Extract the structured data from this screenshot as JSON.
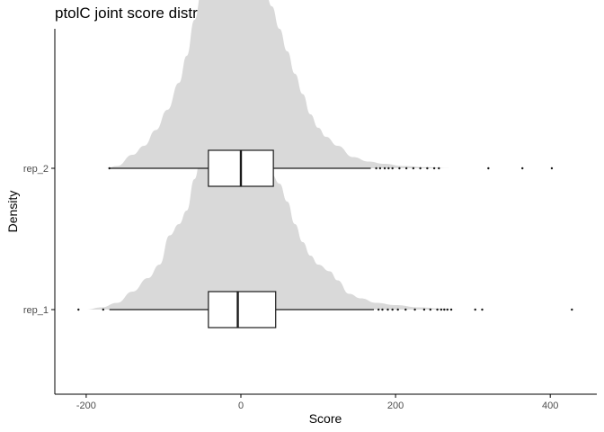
{
  "chart_data": {
    "type": "ridgeline",
    "title": "ptolC joint score distribution",
    "xlabel": "Score",
    "ylabel": "Density",
    "xlim": [
      -240,
      455
    ],
    "x_ticks": [
      -200,
      0,
      200,
      400
    ],
    "x_tick_labels": [
      "-200",
      "0",
      "200",
      "400"
    ],
    "categories": [
      "rep_1",
      "rep_2"
    ],
    "grid": false,
    "legend": "none",
    "colors": {
      "density_fill": "#d9d9d9",
      "box_fill": "#ffffff",
      "line": "#1a1a1a",
      "outlier": "#1a1a1a"
    },
    "series": [
      {
        "name": "rep_1",
        "box": {
          "whisker_low": -170,
          "q1": -42,
          "median": -4,
          "q3": 45,
          "whisker_high": 172
        },
        "density": [
          [
            -200,
            0.0
          ],
          [
            -180,
            0.01
          ],
          [
            -160,
            0.03
          ],
          [
            -140,
            0.08
          ],
          [
            -120,
            0.14
          ],
          [
            -105,
            0.2
          ],
          [
            -92,
            0.33
          ],
          [
            -80,
            0.38
          ],
          [
            -70,
            0.44
          ],
          [
            -60,
            0.58
          ],
          [
            -50,
            0.72
          ],
          [
            -40,
            0.82
          ],
          [
            -30,
            0.88
          ],
          [
            -20,
            0.92
          ],
          [
            -10,
            0.88
          ],
          [
            0,
            0.78
          ],
          [
            10,
            0.7
          ],
          [
            20,
            0.6
          ],
          [
            30,
            0.58
          ],
          [
            40,
            0.6
          ],
          [
            50,
            0.56
          ],
          [
            60,
            0.48
          ],
          [
            70,
            0.38
          ],
          [
            80,
            0.3
          ],
          [
            90,
            0.24
          ],
          [
            100,
            0.2
          ],
          [
            115,
            0.17
          ],
          [
            125,
            0.13
          ],
          [
            140,
            0.07
          ],
          [
            155,
            0.05
          ],
          [
            175,
            0.03
          ],
          [
            200,
            0.02
          ],
          [
            230,
            0.01
          ],
          [
            260,
            0.005
          ],
          [
            280,
            0.0
          ]
        ],
        "outliers": [
          -210,
          -178,
          178,
          183,
          190,
          196,
          203,
          213,
          225,
          237,
          245,
          254,
          259,
          263,
          267,
          272,
          303,
          312,
          428
        ]
      },
      {
        "name": "rep_2",
        "box": {
          "whisker_low": -170,
          "q1": -42,
          "median": 0,
          "q3": 42,
          "whisker_high": 168
        },
        "density": [
          [
            -175,
            0.0
          ],
          [
            -160,
            0.01
          ],
          [
            -140,
            0.06
          ],
          [
            -125,
            0.1
          ],
          [
            -110,
            0.17
          ],
          [
            -95,
            0.26
          ],
          [
            -80,
            0.38
          ],
          [
            -70,
            0.5
          ],
          [
            -60,
            0.66
          ],
          [
            -50,
            0.8
          ],
          [
            -40,
            0.9
          ],
          [
            -30,
            0.95
          ],
          [
            -20,
            0.9
          ],
          [
            -10,
            0.84
          ],
          [
            0,
            0.93
          ],
          [
            10,
            0.97
          ],
          [
            20,
            0.91
          ],
          [
            30,
            0.82
          ],
          [
            40,
            0.72
          ],
          [
            50,
            0.62
          ],
          [
            60,
            0.52
          ],
          [
            70,
            0.42
          ],
          [
            80,
            0.33
          ],
          [
            90,
            0.24
          ],
          [
            100,
            0.18
          ],
          [
            110,
            0.14
          ],
          [
            125,
            0.1
          ],
          [
            145,
            0.05
          ],
          [
            165,
            0.03
          ],
          [
            185,
            0.02
          ],
          [
            210,
            0.01
          ],
          [
            240,
            0.005
          ],
          [
            270,
            0.0
          ]
        ],
        "outliers": [
          -170,
          175,
          180,
          186,
          191,
          196,
          205,
          214,
          223,
          232,
          241,
          250,
          256,
          320,
          364,
          402
        ]
      }
    ]
  }
}
